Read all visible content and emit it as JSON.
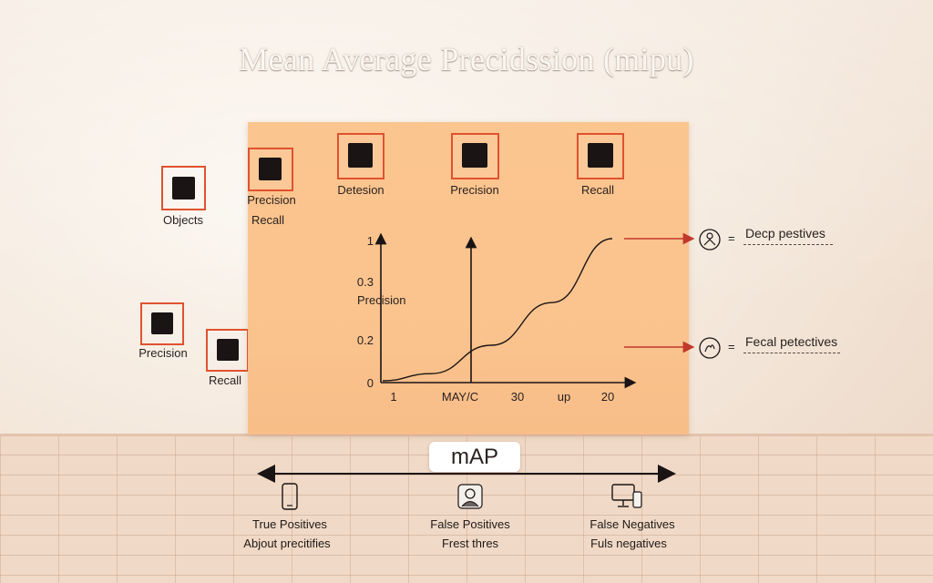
{
  "title": "Mean Average Precidssion (mipu)",
  "left_nodes": {
    "objects": "Objects",
    "precision": "Precision",
    "recall": "Recall"
  },
  "board": {
    "node1_line1": "Precision",
    "node1_line2": "Recall",
    "detection": "Detesion",
    "precision": "Precision",
    "recall": "Recall"
  },
  "chart_data": {
    "type": "line",
    "y_ticks": [
      "1",
      "0.3",
      "0.2",
      "0"
    ],
    "ylabel": "Precision",
    "x_ticks": [
      "1",
      "MAY/C",
      "30",
      "up",
      "20"
    ],
    "series": [
      {
        "x": [
          1,
          5,
          10,
          15,
          20
        ],
        "y": [
          0.0,
          0.05,
          0.25,
          0.55,
          1.0
        ]
      }
    ],
    "marker_x": "MAY/C"
  },
  "right_annotations": [
    {
      "icon": "person-circle-icon",
      "eq": "=",
      "text": "Decp pestives"
    },
    {
      "icon": "hand-circle-icon",
      "eq": "=",
      "text": "Fecal petectives"
    }
  ],
  "map_label": "mAP",
  "bottom": [
    {
      "icon": "phone-icon",
      "line1": "True Positives",
      "line2": "Abjout precitifies"
    },
    {
      "icon": "person-badge-icon",
      "line1": "False Positives",
      "line2": "Frest thres"
    },
    {
      "icon": "monitor-icon",
      "line1": "False Negatives",
      "line2": "Fuls negatives"
    }
  ],
  "colors": {
    "accent_red": "#e0522f",
    "board": "#fbc58f",
    "arrow_red": "#c0392b"
  }
}
